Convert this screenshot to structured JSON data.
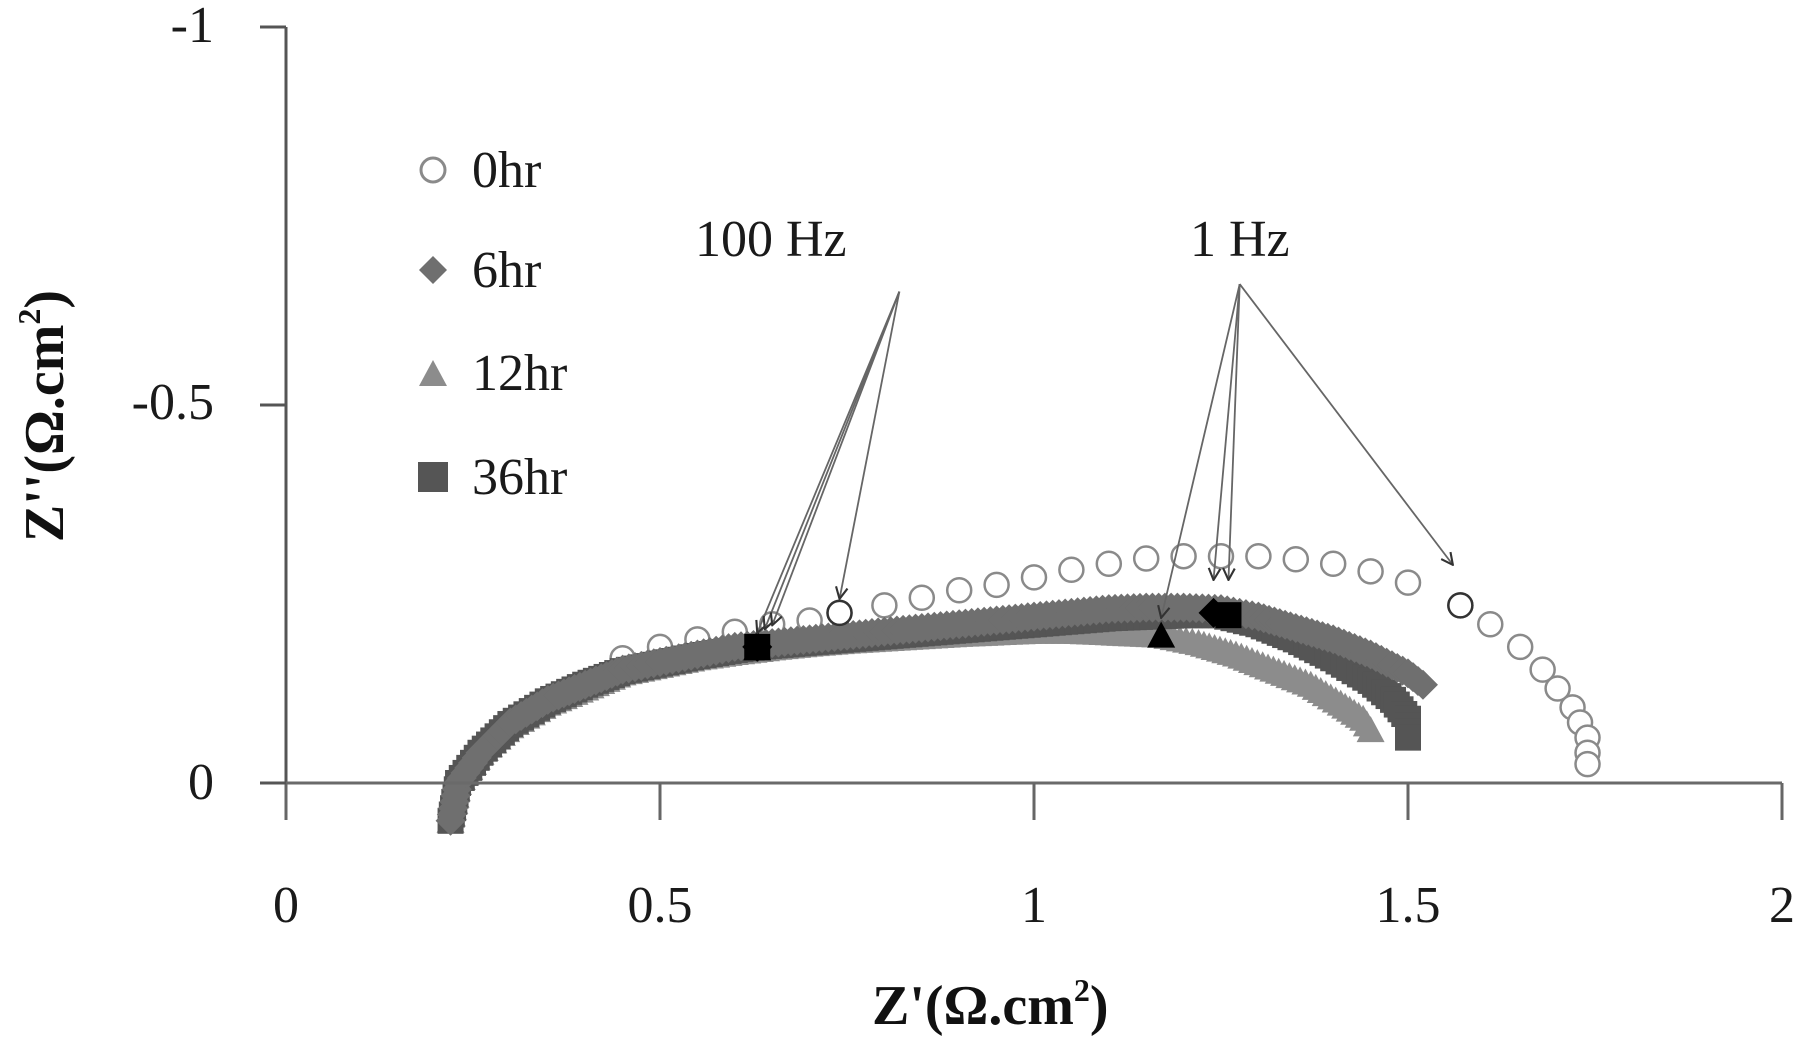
{
  "chart_data": {
    "type": "scatter",
    "title": "",
    "xlabel": "Z'(Ω.cm²)",
    "ylabel": "Z''(Ω.cm²)",
    "xlim": [
      0,
      2
    ],
    "ylim": [
      0,
      -1
    ],
    "y_axis_inverted": true,
    "grid": false,
    "legend_position": "upper-left (inside)",
    "x_ticks": [
      "0",
      "0.5",
      "1",
      "1.5",
      "2"
    ],
    "y_ticks": [
      "-1",
      "-0.5",
      "0"
    ],
    "series": [
      {
        "name": "0hr",
        "marker": "open-circle",
        "color": "#8a8a8a",
        "points": [
          [
            0.22,
            -0.05
          ],
          [
            0.25,
            0.02
          ],
          [
            0.3,
            0.07
          ],
          [
            0.35,
            0.11
          ],
          [
            0.4,
            0.14
          ],
          [
            0.45,
            0.165
          ],
          [
            0.5,
            0.18
          ],
          [
            0.55,
            0.19
          ],
          [
            0.6,
            0.2
          ],
          [
            0.65,
            0.21
          ],
          [
            0.7,
            0.215
          ],
          [
            0.74,
            0.225
          ],
          [
            0.8,
            0.235
          ],
          [
            0.85,
            0.245
          ],
          [
            0.9,
            0.255
          ],
          [
            0.95,
            0.262
          ],
          [
            1.0,
            0.272
          ],
          [
            1.05,
            0.282
          ],
          [
            1.1,
            0.29
          ],
          [
            1.15,
            0.297
          ],
          [
            1.2,
            0.3
          ],
          [
            1.25,
            0.3
          ],
          [
            1.3,
            0.3
          ],
          [
            1.35,
            0.296
          ],
          [
            1.4,
            0.29
          ],
          [
            1.45,
            0.28
          ],
          [
            1.5,
            0.265
          ],
          [
            1.57,
            0.235
          ],
          [
            1.61,
            0.21
          ],
          [
            1.65,
            0.18
          ],
          [
            1.68,
            0.15
          ],
          [
            1.7,
            0.125
          ],
          [
            1.72,
            0.1
          ],
          [
            1.73,
            0.08
          ],
          [
            1.74,
            0.06
          ],
          [
            1.74,
            0.04
          ],
          [
            1.74,
            0.025
          ]
        ]
      },
      {
        "name": "6hr",
        "marker": "diamond",
        "color": "#6f6f6f",
        "points": [
          [
            0.22,
            -0.05
          ],
          [
            0.23,
            0.0
          ],
          [
            0.26,
            0.04
          ],
          [
            0.3,
            0.08
          ],
          [
            0.35,
            0.11
          ],
          [
            0.4,
            0.13
          ],
          [
            0.45,
            0.15
          ],
          [
            0.5,
            0.16
          ],
          [
            0.55,
            0.17
          ],
          [
            0.6,
            0.18
          ],
          [
            0.65,
            0.185
          ],
          [
            0.7,
            0.19
          ],
          [
            0.75,
            0.195
          ],
          [
            0.8,
            0.2
          ],
          [
            0.85,
            0.205
          ],
          [
            0.9,
            0.21
          ],
          [
            0.95,
            0.215
          ],
          [
            1.0,
            0.22
          ],
          [
            1.05,
            0.225
          ],
          [
            1.1,
            0.23
          ],
          [
            1.15,
            0.232
          ],
          [
            1.2,
            0.232
          ],
          [
            1.25,
            0.23
          ],
          [
            1.3,
            0.22
          ],
          [
            1.35,
            0.205
          ],
          [
            1.4,
            0.19
          ],
          [
            1.45,
            0.17
          ],
          [
            1.5,
            0.145
          ],
          [
            1.52,
            0.13
          ]
        ]
      },
      {
        "name": "12hr",
        "marker": "triangle",
        "color": "#8c8c8c",
        "points": [
          [
            0.22,
            -0.05
          ],
          [
            0.23,
            0.0
          ],
          [
            0.26,
            0.04
          ],
          [
            0.3,
            0.075
          ],
          [
            0.35,
            0.105
          ],
          [
            0.4,
            0.125
          ],
          [
            0.45,
            0.145
          ],
          [
            0.5,
            0.155
          ],
          [
            0.55,
            0.165
          ],
          [
            0.6,
            0.172
          ],
          [
            0.65,
            0.178
          ],
          [
            0.7,
            0.183
          ],
          [
            0.75,
            0.187
          ],
          [
            0.8,
            0.19
          ],
          [
            0.85,
            0.193
          ],
          [
            0.9,
            0.196
          ],
          [
            0.95,
            0.198
          ],
          [
            1.0,
            0.2
          ],
          [
            1.05,
            0.2
          ],
          [
            1.1,
            0.198
          ],
          [
            1.17,
            0.195
          ],
          [
            1.22,
            0.185
          ],
          [
            1.27,
            0.17
          ],
          [
            1.32,
            0.15
          ],
          [
            1.37,
            0.13
          ],
          [
            1.41,
            0.105
          ],
          [
            1.44,
            0.085
          ],
          [
            1.45,
            0.07
          ]
        ]
      },
      {
        "name": "36hr",
        "marker": "square",
        "color": "#555555",
        "points": [
          [
            0.22,
            -0.05
          ],
          [
            0.23,
            0.0
          ],
          [
            0.26,
            0.04
          ],
          [
            0.3,
            0.078
          ],
          [
            0.35,
            0.108
          ],
          [
            0.4,
            0.13
          ],
          [
            0.45,
            0.148
          ],
          [
            0.5,
            0.158
          ],
          [
            0.55,
            0.168
          ],
          [
            0.6,
            0.176
          ],
          [
            0.63,
            0.18
          ],
          [
            0.7,
            0.186
          ],
          [
            0.75,
            0.19
          ],
          [
            0.8,
            0.194
          ],
          [
            0.85,
            0.198
          ],
          [
            0.9,
            0.202
          ],
          [
            0.95,
            0.206
          ],
          [
            1.0,
            0.21
          ],
          [
            1.05,
            0.214
          ],
          [
            1.1,
            0.218
          ],
          [
            1.15,
            0.22
          ],
          [
            1.2,
            0.222
          ],
          [
            1.25,
            0.222
          ],
          [
            1.3,
            0.21
          ],
          [
            1.35,
            0.19
          ],
          [
            1.4,
            0.165
          ],
          [
            1.45,
            0.135
          ],
          [
            1.48,
            0.11
          ],
          [
            1.5,
            0.085
          ],
          [
            1.5,
            0.06
          ]
        ]
      }
    ],
    "highlighted_points": [
      {
        "series": "0hr",
        "freq": "100 Hz",
        "point": [
          0.74,
          0.225
        ]
      },
      {
        "series": "6hr",
        "freq": "100 Hz",
        "point": [
          0.63,
          0.18
        ]
      },
      {
        "series": "12hr",
        "freq": "100 Hz",
        "point": [
          0.63,
          0.178
        ]
      },
      {
        "series": "36hr",
        "freq": "100 Hz",
        "point": [
          0.63,
          0.18
        ]
      },
      {
        "series": "0hr",
        "freq": "1 Hz",
        "point": [
          1.57,
          0.235
        ]
      },
      {
        "series": "6hr",
        "freq": "1 Hz",
        "point": [
          1.24,
          0.225
        ]
      },
      {
        "series": "12hr",
        "freq": "1 Hz",
        "point": [
          1.17,
          0.195
        ]
      },
      {
        "series": "36hr",
        "freq": "1 Hz",
        "point": [
          1.26,
          0.222
        ]
      }
    ],
    "annotations": [
      {
        "text": "100 Hz",
        "anchor": [
          0.82,
          0.65
        ],
        "targets": [
          [
            0.63,
            0.18
          ],
          [
            0.64,
            0.185
          ],
          [
            0.65,
            0.19
          ],
          [
            0.74,
            0.225
          ]
        ]
      },
      {
        "text": "1 Hz",
        "anchor": [
          1.275,
          0.66
        ],
        "targets": [
          [
            1.17,
            0.2
          ],
          [
            1.24,
            0.25
          ],
          [
            1.26,
            0.25
          ],
          [
            1.56,
            0.27
          ]
        ]
      }
    ]
  },
  "axes": {
    "x_ticks": [
      {
        "label": "0",
        "value": 0
      },
      {
        "label": "0.5",
        "value": 0.5
      },
      {
        "label": "1",
        "value": 1
      },
      {
        "label": "1.5",
        "value": 1.5
      },
      {
        "label": "2",
        "value": 2
      }
    ],
    "y_ticks": [
      {
        "label": "-1",
        "value": -1
      },
      {
        "label": "-0.5",
        "value": -0.5
      },
      {
        "label": "0",
        "value": 0
      }
    ],
    "x_title_main": "Z'(Ω.cm",
    "x_title_sup": "2",
    "x_title_close": ")",
    "y_title_main": "Z''(Ω.cm",
    "y_title_sup": "2",
    "y_title_close": ")"
  },
  "legend": [
    {
      "label": "0hr",
      "marker": "open-circle-icon"
    },
    {
      "label": "6hr",
      "marker": "diamond-icon"
    },
    {
      "label": "12hr",
      "marker": "triangle-icon"
    },
    {
      "label": "36hr",
      "marker": "square-icon"
    }
  ],
  "annotations": {
    "hz100": "100 Hz",
    "hz1": "1 Hz"
  }
}
